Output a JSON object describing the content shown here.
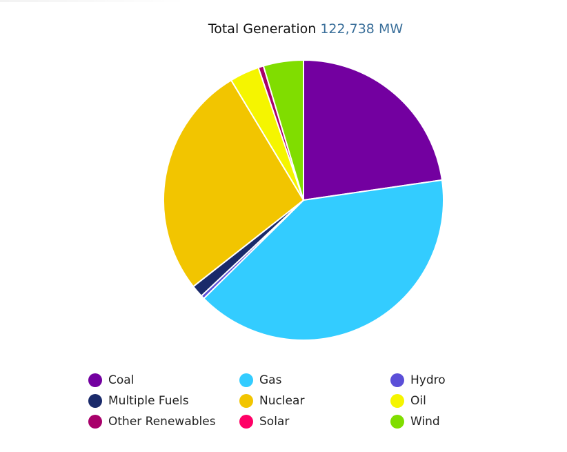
{
  "header": {
    "label": "Total Generation",
    "total": "122,738 MW"
  },
  "chart_data": {
    "type": "pie",
    "categories": [
      "Coal",
      "Gas",
      "Hydro",
      "Multiple Fuels",
      "Nuclear",
      "Oil",
      "Other Renewables",
      "Solar",
      "Wind"
    ],
    "values": [
      22.6,
      39.7,
      0.4,
      1.4,
      26.8,
      3.4,
      0.6,
      0.0,
      4.6
    ],
    "colors": [
      "#7300a0",
      "#33ccff",
      "#5b4fd8",
      "#1a2a6a",
      "#f2c500",
      "#f5f500",
      "#a8006a",
      "#ff0066",
      "#80dd00"
    ],
    "legend_position": "bottom"
  }
}
